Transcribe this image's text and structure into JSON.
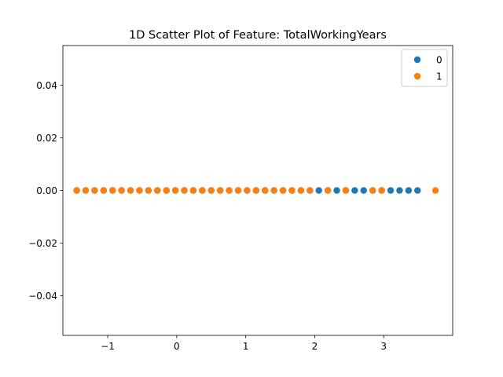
{
  "chart_data": {
    "type": "scatter",
    "title": "1D Scatter Plot of Feature: TotalWorkingYears",
    "xlabel": "",
    "ylabel": "",
    "xlim": [
      -1.65,
      4.0
    ],
    "ylim": [
      -0.055,
      0.055
    ],
    "x_ticks": [
      -1,
      0,
      1,
      2,
      3
    ],
    "x_tick_labels": [
      "−1",
      "0",
      "1",
      "2",
      "3"
    ],
    "y_ticks": [
      -0.04,
      -0.02,
      0.0,
      0.02,
      0.04
    ],
    "y_tick_labels": [
      "−0.04",
      "−0.02",
      "0.00",
      "0.02",
      "0.04"
    ],
    "grid": false,
    "legend_position": "top-right",
    "series": [
      {
        "name": "0",
        "color": "#1f77b4",
        "x": [
          -1.45,
          -1.32,
          -1.19,
          -1.06,
          -0.93,
          -0.8,
          -0.67,
          -0.54,
          -0.41,
          -0.28,
          -0.15,
          -0.02,
          0.11,
          0.24,
          0.37,
          0.5,
          0.63,
          0.76,
          0.89,
          1.02,
          1.15,
          1.28,
          1.41,
          1.54,
          1.67,
          1.8,
          1.93,
          2.06,
          2.19,
          2.32,
          2.45,
          2.58,
          2.71,
          2.84,
          2.97,
          3.1,
          3.23,
          3.36,
          3.49
        ],
        "y": [
          0,
          0,
          0,
          0,
          0,
          0,
          0,
          0,
          0,
          0,
          0,
          0,
          0,
          0,
          0,
          0,
          0,
          0,
          0,
          0,
          0,
          0,
          0,
          0,
          0,
          0,
          0,
          0,
          0,
          0,
          0,
          0,
          0,
          0,
          0,
          0,
          0,
          0,
          0
        ]
      },
      {
        "name": "1",
        "color": "#ff7f0e",
        "x": [
          -1.45,
          -1.32,
          -1.19,
          -1.06,
          -0.93,
          -0.8,
          -0.67,
          -0.54,
          -0.41,
          -0.28,
          -0.15,
          -0.02,
          0.11,
          0.24,
          0.37,
          0.5,
          0.63,
          0.76,
          0.89,
          1.02,
          1.15,
          1.28,
          1.41,
          1.54,
          1.67,
          1.8,
          1.93,
          2.19,
          2.45,
          2.84,
          2.97,
          3.75
        ],
        "y": [
          0,
          0,
          0,
          0,
          0,
          0,
          0,
          0,
          0,
          0,
          0,
          0,
          0,
          0,
          0,
          0,
          0,
          0,
          0,
          0,
          0,
          0,
          0,
          0,
          0,
          0,
          0,
          0,
          0,
          0,
          0,
          0
        ]
      }
    ]
  }
}
